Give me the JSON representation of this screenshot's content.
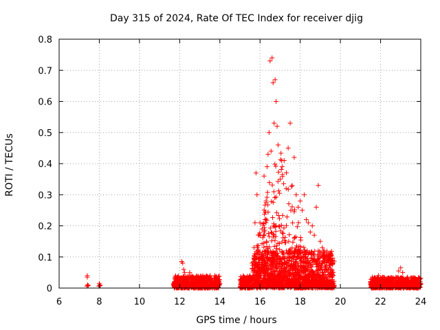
{
  "chart_data": {
    "type": "scatter",
    "title": "Day 315 of 2024, Rate Of TEC Index for receiver djig",
    "xlabel": "GPS time / hours",
    "ylabel": "ROTI / TECUs",
    "xlim": [
      6,
      24
    ],
    "ylim": [
      0,
      0.8
    ],
    "xticks": [
      "6",
      "8",
      "10",
      "12",
      "14",
      "16",
      "18",
      "20",
      "22",
      "24"
    ],
    "yticks": [
      "0",
      "0.1",
      "0.2",
      "0.3",
      "0.4",
      "0.5",
      "0.6",
      "0.7",
      "0.8"
    ],
    "grid": true,
    "marker": "+",
    "series": [
      {
        "name": "ROTI",
        "color": "#ff0000",
        "points": [
          [
            7.4,
            0.04
          ],
          [
            7.4,
            0.035
          ],
          [
            7.42,
            0.01
          ],
          [
            7.45,
            0.008
          ],
          [
            7.38,
            0.006
          ],
          [
            8.0,
            0.015
          ],
          [
            8.02,
            0.01
          ],
          [
            8.05,
            0.008
          ],
          [
            7.98,
            0.006
          ],
          [
            11.7,
            0.01
          ],
          [
            11.8,
            0.015
          ],
          [
            11.9,
            0.02
          ],
          [
            12.0,
            0.03
          ],
          [
            12.1,
            0.085
          ],
          [
            12.15,
            0.08
          ],
          [
            12.2,
            0.06
          ],
          [
            12.25,
            0.05
          ],
          [
            12.4,
            0.03
          ],
          [
            12.5,
            0.05
          ],
          [
            12.6,
            0.04
          ],
          [
            12.8,
            0.03
          ],
          [
            13.0,
            0.025
          ],
          [
            13.2,
            0.03
          ],
          [
            13.4,
            0.035
          ],
          [
            13.5,
            0.02
          ],
          [
            13.7,
            0.025
          ],
          [
            13.9,
            0.02
          ],
          [
            14.0,
            0.015
          ],
          [
            15.1,
            0.02
          ],
          [
            15.3,
            0.03
          ],
          [
            15.5,
            0.04
          ],
          [
            15.6,
            0.08
          ],
          [
            15.7,
            0.13
          ],
          [
            15.75,
            0.21
          ],
          [
            15.8,
            0.37
          ],
          [
            15.85,
            0.3
          ],
          [
            15.9,
            0.12
          ],
          [
            16.0,
            0.21
          ],
          [
            16.1,
            0.19
          ],
          [
            16.2,
            0.36
          ],
          [
            16.25,
            0.22
          ],
          [
            16.3,
            0.28
          ],
          [
            16.35,
            0.39
          ],
          [
            16.4,
            0.43
          ],
          [
            16.45,
            0.5
          ],
          [
            16.5,
            0.73
          ],
          [
            16.55,
            0.44
          ],
          [
            16.6,
            0.74
          ],
          [
            16.65,
            0.66
          ],
          [
            16.7,
            0.53
          ],
          [
            16.75,
            0.67
          ],
          [
            16.8,
            0.6
          ],
          [
            16.85,
            0.52
          ],
          [
            16.9,
            0.46
          ],
          [
            17.0,
            0.35
          ],
          [
            17.1,
            0.39
          ],
          [
            17.2,
            0.41
          ],
          [
            17.3,
            0.32
          ],
          [
            17.4,
            0.45
          ],
          [
            17.5,
            0.53
          ],
          [
            17.6,
            0.33
          ],
          [
            17.7,
            0.42
          ],
          [
            17.8,
            0.3
          ],
          [
            17.9,
            0.26
          ],
          [
            18.0,
            0.28
          ],
          [
            18.1,
            0.25
          ],
          [
            18.2,
            0.3
          ],
          [
            18.3,
            0.22
          ],
          [
            18.4,
            0.21
          ],
          [
            18.5,
            0.18
          ],
          [
            18.6,
            0.2
          ],
          [
            18.7,
            0.17
          ],
          [
            18.8,
            0.26
          ],
          [
            18.9,
            0.33
          ],
          [
            19.0,
            0.15
          ],
          [
            19.1,
            0.13
          ],
          [
            19.2,
            0.12
          ],
          [
            19.3,
            0.1
          ],
          [
            19.4,
            0.09
          ],
          [
            19.5,
            0.08
          ],
          [
            19.6,
            0.05
          ],
          [
            21.5,
            0.02
          ],
          [
            21.7,
            0.03
          ],
          [
            21.9,
            0.04
          ],
          [
            22.1,
            0.035
          ],
          [
            22.3,
            0.03
          ],
          [
            22.5,
            0.025
          ],
          [
            22.7,
            0.03
          ],
          [
            22.9,
            0.055
          ],
          [
            23.0,
            0.065
          ],
          [
            23.1,
            0.05
          ],
          [
            23.3,
            0.03
          ],
          [
            23.5,
            0.025
          ],
          [
            23.7,
            0.03
          ],
          [
            23.9,
            0.02
          ],
          [
            24.0,
            0.015
          ]
        ],
        "bulk_regions": [
          {
            "x_start": 11.7,
            "x_end": 14.0,
            "y_max": 0.04
          },
          {
            "x_start": 15.0,
            "x_end": 15.6,
            "y_max": 0.04
          },
          {
            "x_start": 15.6,
            "x_end": 19.7,
            "y_max": 0.12
          },
          {
            "x_start": 21.5,
            "x_end": 24.0,
            "y_max": 0.035
          }
        ]
      }
    ]
  }
}
